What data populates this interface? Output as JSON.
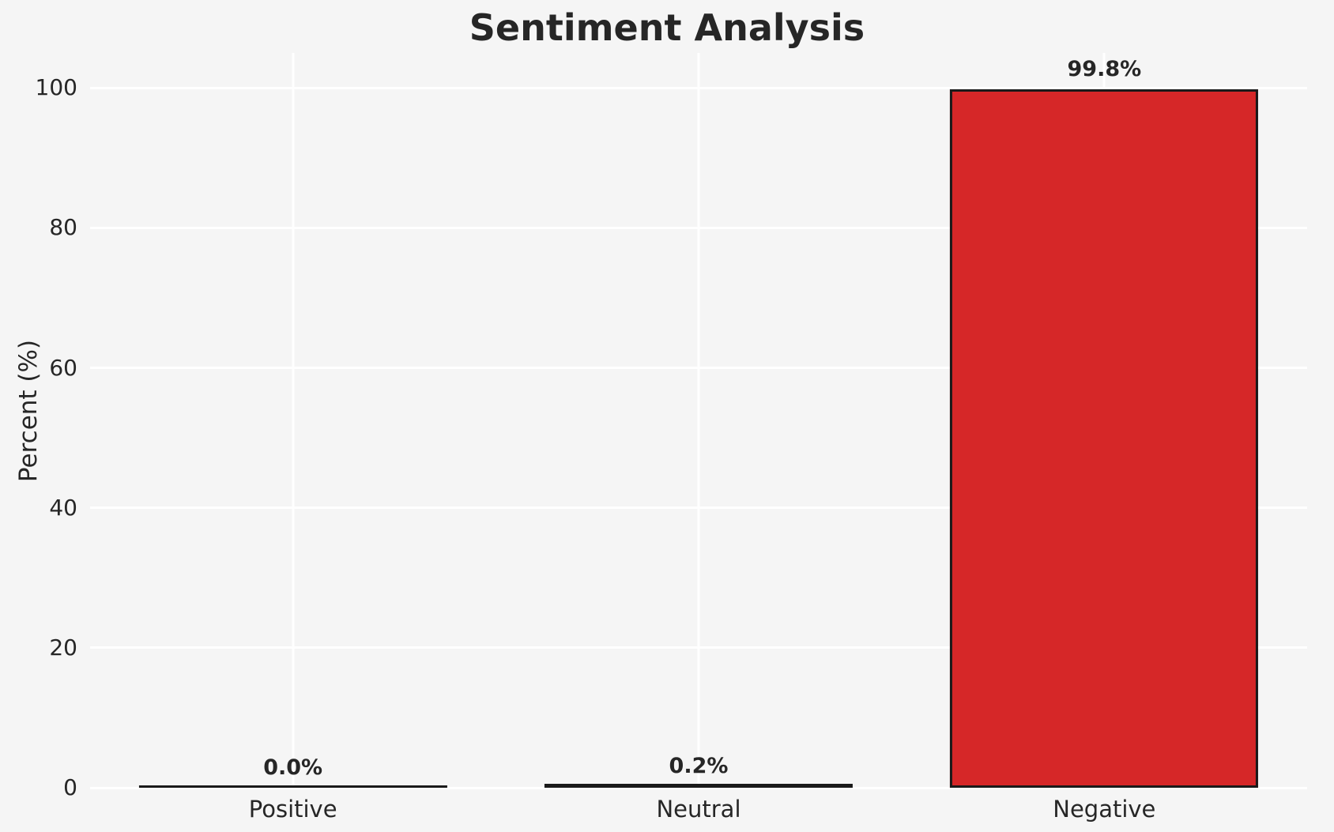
{
  "chart_data": {
    "type": "bar",
    "title": "Sentiment Analysis",
    "xlabel": "",
    "ylabel": "Percent (%)",
    "categories": [
      "Positive",
      "Neutral",
      "Negative"
    ],
    "values": [
      0.0,
      0.2,
      99.8
    ],
    "value_labels": [
      "0.0%",
      "0.2%",
      "99.8%"
    ],
    "bar_fills": [
      null,
      null,
      "#d62728"
    ],
    "yticks": [
      0,
      20,
      40,
      60,
      80,
      100
    ],
    "ylim": [
      0,
      105
    ],
    "grid": "on",
    "legend_position": "none",
    "bar_width_fraction": 0.76,
    "colors": {
      "negative_bar_fill": "#d62728",
      "bar_edge": "#1a1a1a",
      "background": "#f5f5f5",
      "gridline": "#ffffff",
      "text": "#262626"
    }
  }
}
